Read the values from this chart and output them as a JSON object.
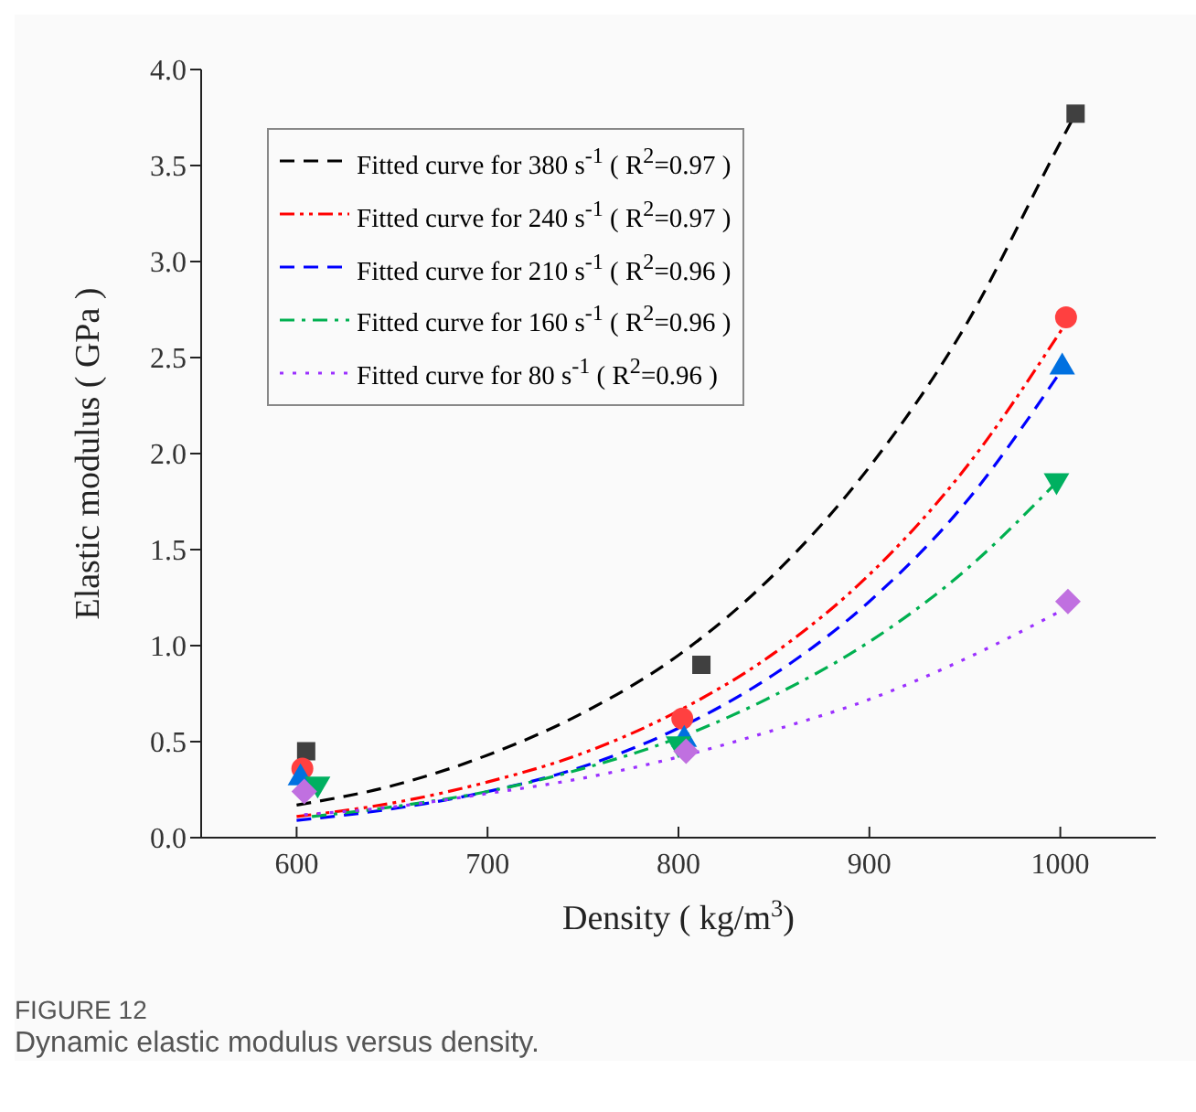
{
  "chart_data": {
    "type": "scatter",
    "xlabel": "Density ( kg/m$^{3}$)",
    "ylabel": "Elastic modulus ( GPa )",
    "xlim": [
      550,
      1050
    ],
    "xticks": [
      600,
      700,
      800,
      900,
      1000
    ],
    "ylim": [
      0,
      4
    ],
    "yticks": [
      {
        "value": 0,
        "label": "0.0"
      },
      {
        "value": 0.5,
        "label": "0.5"
      },
      {
        "value": 1,
        "label": "1.0"
      },
      {
        "value": 1.5,
        "label": "1.5"
      },
      {
        "value": 2,
        "label": "2.0"
      },
      {
        "value": 2.5,
        "label": "2.5"
      },
      {
        "value": 3,
        "label": "3.0"
      },
      {
        "value": 3.5,
        "label": "3.5"
      },
      {
        "value": 4,
        "label": "4.0"
      }
    ],
    "legend": "top left",
    "series": [
      {
        "type": "line",
        "name": "Fitted curve for 380 s$^{-1}$ ( R$^{2}$=0.97 )",
        "color": "#000000",
        "line_style": "dashed",
        "marker": "none",
        "x": [
          600,
          650,
          700,
          750,
          800,
          850,
          900,
          950,
          1000,
          1008
        ],
        "values": [
          0.17,
          0.27,
          0.43,
          0.65,
          0.95,
          1.37,
          1.93,
          2.66,
          3.62,
          3.77
        ]
      },
      {
        "type": "line",
        "name": "Fitted curve for 240 s$^{-1}$ ( R$^{2}$=0.97 )",
        "color": "#ff0000",
        "line_style": "dashdotdot",
        "marker": "none",
        "x": [
          600,
          650,
          700,
          750,
          800,
          850,
          900,
          950,
          1003
        ],
        "values": [
          0.11,
          0.18,
          0.29,
          0.44,
          0.66,
          0.96,
          1.37,
          1.92,
          2.68
        ]
      },
      {
        "type": "line",
        "name": "Fitted curve for 210 s$^{-1}$ ( R$^{2}$=0.96 )",
        "color": "#0000ff",
        "line_style": "dashed",
        "marker": "none",
        "x": [
          600,
          650,
          700,
          750,
          800,
          850,
          900,
          950,
          1001
        ],
        "values": [
          0.09,
          0.15,
          0.24,
          0.37,
          0.57,
          0.85,
          1.23,
          1.74,
          2.44
        ]
      },
      {
        "type": "line",
        "name": "Fitted curve for 160 s$^{-1}$ ( R$^{2}$=0.96 )",
        "color": "#00b050",
        "line_style": "dashdot",
        "marker": "none",
        "x": [
          608,
          650,
          700,
          750,
          800,
          850,
          900,
          950,
          998
        ],
        "values": [
          0.11,
          0.16,
          0.24,
          0.36,
          0.52,
          0.74,
          1.02,
          1.39,
          1.85
        ]
      },
      {
        "type": "line",
        "name": "Fitted curve for 80 s$^{-1}$ ( R$^{2}$=0.96 )",
        "color": "#9b30ff",
        "line_style": "dotted",
        "marker": "none",
        "x": [
          604,
          650,
          700,
          750,
          800,
          850,
          900,
          950,
          1004
        ],
        "values": [
          0.12,
          0.16,
          0.23,
          0.31,
          0.42,
          0.56,
          0.72,
          0.93,
          1.2
        ]
      },
      {
        "type": "scatter",
        "color": "#404040",
        "marker": "square",
        "x": [
          605,
          812,
          1008
        ],
        "values": [
          0.45,
          0.9,
          3.77
        ]
      },
      {
        "type": "scatter",
        "color": "#ff4040",
        "marker": "circle",
        "x": [
          603,
          802,
          1003
        ],
        "values": [
          0.36,
          0.62,
          2.71
        ]
      },
      {
        "type": "scatter",
        "color": "#0070e0",
        "marker": "triangle",
        "x": [
          602,
          803,
          1001
        ],
        "values": [
          0.32,
          0.52,
          2.46
        ]
      },
      {
        "type": "scatter",
        "color": "#00b060",
        "marker": "triangle-down",
        "x": [
          611,
          800,
          998
        ],
        "values": [
          0.27,
          0.48,
          1.85
        ]
      },
      {
        "type": "scatter",
        "color": "#c070e0",
        "marker": "diamond",
        "x": [
          604,
          804,
          1004
        ],
        "values": [
          0.24,
          0.45,
          1.23
        ]
      }
    ],
    "annotations": [
      "FIGURE 12",
      "Dynamic elastic modulus versus density."
    ]
  }
}
